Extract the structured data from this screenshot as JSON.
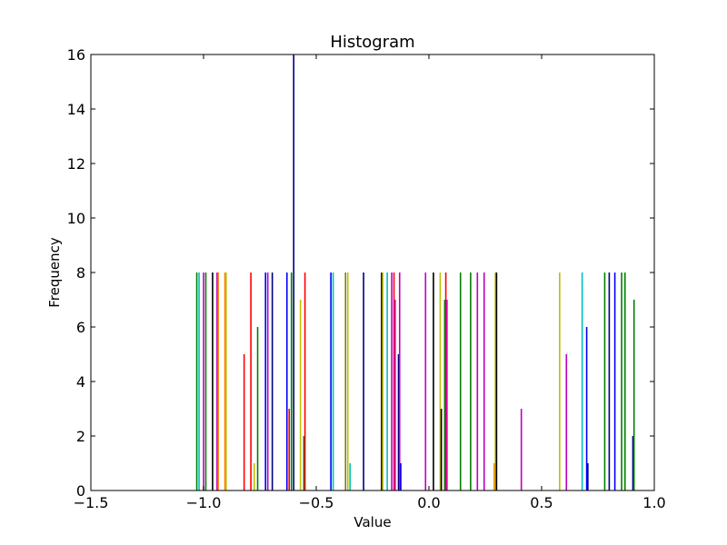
{
  "chart_data": {
    "type": "bar",
    "title": "Histogram",
    "xlabel": "Value",
    "ylabel": "Frequency",
    "xlim": [
      -1.5,
      1.0
    ],
    "ylim": [
      0,
      16
    ],
    "xticks": [
      -1.5,
      -1.0,
      -0.5,
      0.0,
      0.5,
      1.0
    ],
    "xtick_labels": [
      "−1.5",
      "−1.0",
      "−0.5",
      "0.0",
      "0.5",
      "1.0"
    ],
    "yticks": [
      0,
      2,
      4,
      6,
      8,
      10,
      12,
      14,
      16
    ],
    "ytick_labels": [
      "0",
      "2",
      "4",
      "6",
      "8",
      "10",
      "12",
      "14",
      "16"
    ],
    "grid": false,
    "bars": [
      {
        "x": -1.03,
        "value": 8,
        "color": "#008000"
      },
      {
        "x": -1.02,
        "value": 8,
        "color": "#00bfbf"
      },
      {
        "x": -1.0,
        "value": 8,
        "color": "#bf00bf"
      },
      {
        "x": -0.99,
        "value": 8,
        "color": "#008000"
      },
      {
        "x": -0.96,
        "value": 8,
        "color": "#000000"
      },
      {
        "x": -0.94,
        "value": 8,
        "color": "#bf00bf"
      },
      {
        "x": -0.935,
        "value": 8,
        "color": "#ff8000"
      },
      {
        "x": -0.905,
        "value": 8,
        "color": "#ff8000"
      },
      {
        "x": -0.9,
        "value": 8,
        "color": "#bfbf00"
      },
      {
        "x": -0.82,
        "value": 5,
        "color": "#ff0000"
      },
      {
        "x": -0.79,
        "value": 8,
        "color": "#ff0000"
      },
      {
        "x": -0.775,
        "value": 1,
        "color": "#bfbf00"
      },
      {
        "x": -0.76,
        "value": 6,
        "color": "#008000"
      },
      {
        "x": -0.725,
        "value": 8,
        "color": "#0000ff"
      },
      {
        "x": -0.715,
        "value": 8,
        "color": "#bf00bf"
      },
      {
        "x": -0.695,
        "value": 8,
        "color": "#000080"
      },
      {
        "x": -0.63,
        "value": 8,
        "color": "#0000ff"
      },
      {
        "x": -0.62,
        "value": 3,
        "color": "#ff0000"
      },
      {
        "x": -0.61,
        "value": 8,
        "color": "#008000"
      },
      {
        "x": -0.6,
        "value": 16,
        "color": "#000080"
      },
      {
        "x": -0.57,
        "value": 7,
        "color": "#bfbf00"
      },
      {
        "x": -0.555,
        "value": 2,
        "color": "#008000"
      },
      {
        "x": -0.55,
        "value": 8,
        "color": "#ff0000"
      },
      {
        "x": -0.435,
        "value": 8,
        "color": "#0000ff"
      },
      {
        "x": -0.425,
        "value": 8,
        "color": "#00bfbf"
      },
      {
        "x": -0.37,
        "value": 8,
        "color": "#808000"
      },
      {
        "x": -0.36,
        "value": 8,
        "color": "#bfbf00"
      },
      {
        "x": -0.35,
        "value": 1,
        "color": "#00bfbf"
      },
      {
        "x": -0.29,
        "value": 8,
        "color": "#000080"
      },
      {
        "x": -0.21,
        "value": 8,
        "color": "#000000"
      },
      {
        "x": -0.205,
        "value": 8,
        "color": "#bfbf00"
      },
      {
        "x": -0.185,
        "value": 8,
        "color": "#00bfbf"
      },
      {
        "x": -0.165,
        "value": 8,
        "color": "#bf00bf"
      },
      {
        "x": -0.155,
        "value": 8,
        "color": "#ff0000"
      },
      {
        "x": -0.15,
        "value": 7,
        "color": "#bf00bf"
      },
      {
        "x": -0.135,
        "value": 5,
        "color": "#000080"
      },
      {
        "x": -0.13,
        "value": 8,
        "color": "#bf00bf"
      },
      {
        "x": -0.125,
        "value": 1,
        "color": "#0000ff"
      },
      {
        "x": -0.015,
        "value": 8,
        "color": "#bf00bf"
      },
      {
        "x": 0.02,
        "value": 8,
        "color": "#000000"
      },
      {
        "x": 0.05,
        "value": 8,
        "color": "#bfbf00"
      },
      {
        "x": 0.055,
        "value": 3,
        "color": "#000000"
      },
      {
        "x": 0.07,
        "value": 7,
        "color": "#008000"
      },
      {
        "x": 0.075,
        "value": 8,
        "color": "#ff0000"
      },
      {
        "x": 0.08,
        "value": 7,
        "color": "#bf00bf"
      },
      {
        "x": 0.14,
        "value": 8,
        "color": "#008000"
      },
      {
        "x": 0.185,
        "value": 8,
        "color": "#008000"
      },
      {
        "x": 0.215,
        "value": 8,
        "color": "#bf00bf"
      },
      {
        "x": 0.245,
        "value": 8,
        "color": "#bf00bf"
      },
      {
        "x": 0.29,
        "value": 1,
        "color": "#ff8000"
      },
      {
        "x": 0.295,
        "value": 8,
        "color": "#bfbf00"
      },
      {
        "x": 0.3,
        "value": 8,
        "color": "#000000"
      },
      {
        "x": 0.41,
        "value": 3,
        "color": "#bf00bf"
      },
      {
        "x": 0.58,
        "value": 8,
        "color": "#bfbf00"
      },
      {
        "x": 0.61,
        "value": 5,
        "color": "#bf00bf"
      },
      {
        "x": 0.68,
        "value": 8,
        "color": "#00bfbf"
      },
      {
        "x": 0.7,
        "value": 6,
        "color": "#0000ff"
      },
      {
        "x": 0.705,
        "value": 1,
        "color": "#000080"
      },
      {
        "x": 0.78,
        "value": 8,
        "color": "#008000"
      },
      {
        "x": 0.8,
        "value": 8,
        "color": "#000080"
      },
      {
        "x": 0.825,
        "value": 8,
        "color": "#0000ff"
      },
      {
        "x": 0.855,
        "value": 8,
        "color": "#008000"
      },
      {
        "x": 0.87,
        "value": 8,
        "color": "#008000"
      },
      {
        "x": 0.905,
        "value": 2,
        "color": "#000080"
      },
      {
        "x": 0.91,
        "value": 7,
        "color": "#008000"
      }
    ]
  }
}
